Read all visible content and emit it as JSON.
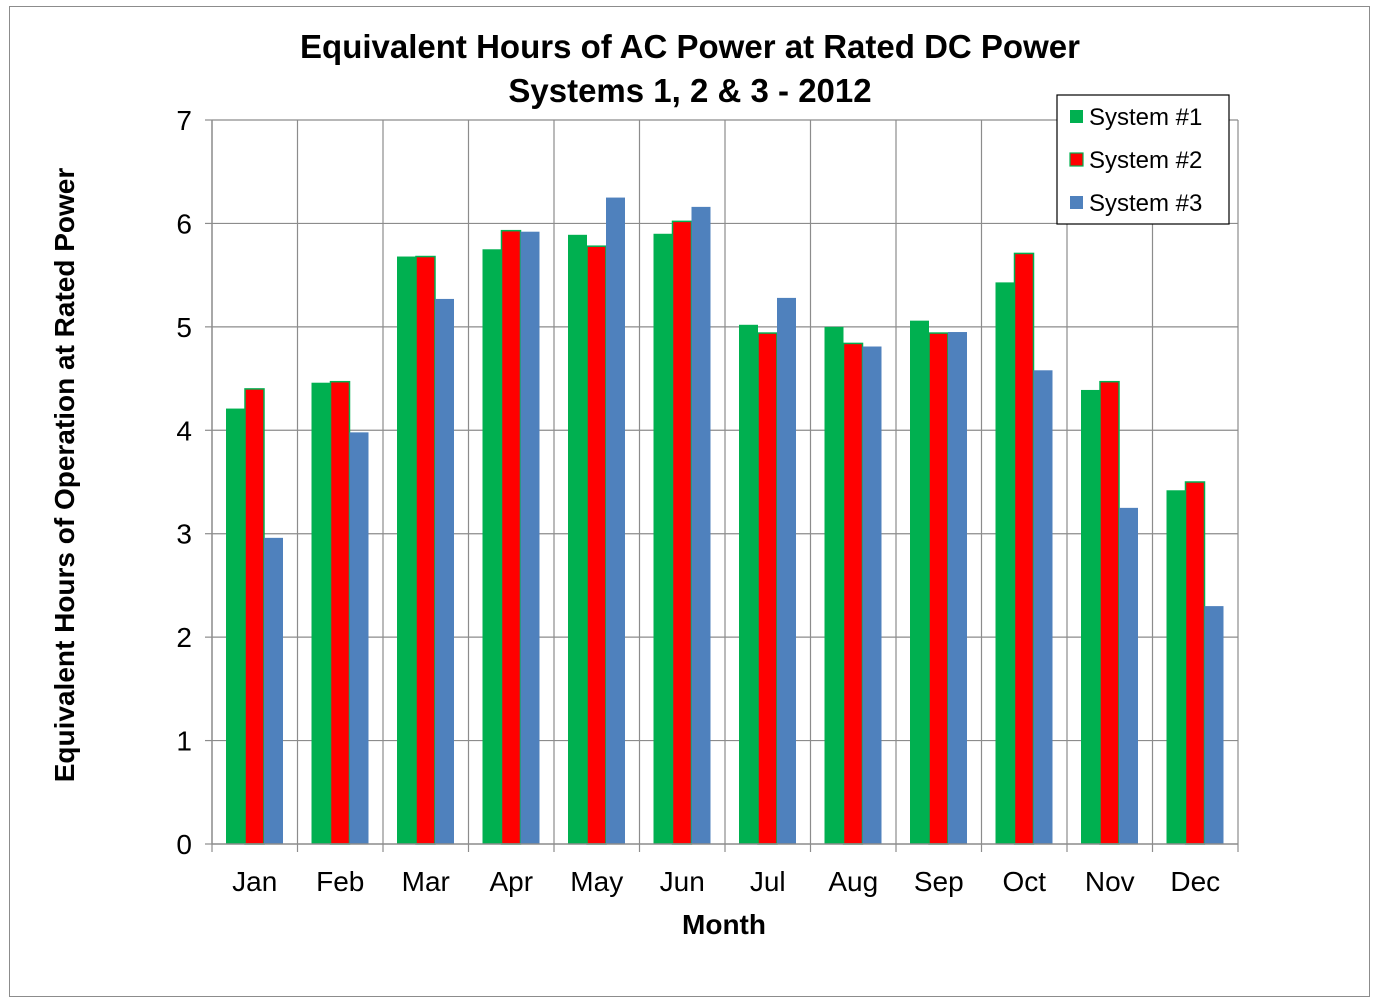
{
  "chart_data": {
    "type": "bar",
    "title": "Equivalent Hours of AC Power at Rated DC Power",
    "subtitle": "Systems 1, 2 & 3 - 2012",
    "xlabel": "Month",
    "ylabel": "Equivalent Hours of Operation at Rated Power",
    "ylim": [
      0,
      7
    ],
    "yticks": [
      "0",
      "1",
      "2",
      "3",
      "4",
      "5",
      "6",
      "7"
    ],
    "grid": true,
    "legend_position": "top-right",
    "categories": [
      "Jan",
      "Feb",
      "Mar",
      "Apr",
      "May",
      "Jun",
      "Jul",
      "Aug",
      "Sep",
      "Oct",
      "Nov",
      "Dec"
    ],
    "series": [
      {
        "name": "System #1",
        "color": "#00b050",
        "values": [
          4.21,
          4.46,
          5.68,
          5.75,
          5.89,
          5.9,
          5.02,
          5.0,
          5.06,
          5.43,
          4.39,
          3.42
        ]
      },
      {
        "name": "System #2",
        "color": "#ff0000",
        "border": "#00b050",
        "values": [
          4.4,
          4.47,
          5.68,
          5.93,
          5.78,
          6.02,
          4.94,
          4.84,
          4.94,
          5.71,
          4.47,
          3.5
        ]
      },
      {
        "name": "System #3",
        "color": "#4f81bd",
        "values": [
          2.96,
          3.98,
          5.27,
          5.92,
          6.25,
          6.16,
          5.28,
          4.81,
          4.95,
          4.58,
          3.25,
          2.3
        ]
      }
    ]
  }
}
